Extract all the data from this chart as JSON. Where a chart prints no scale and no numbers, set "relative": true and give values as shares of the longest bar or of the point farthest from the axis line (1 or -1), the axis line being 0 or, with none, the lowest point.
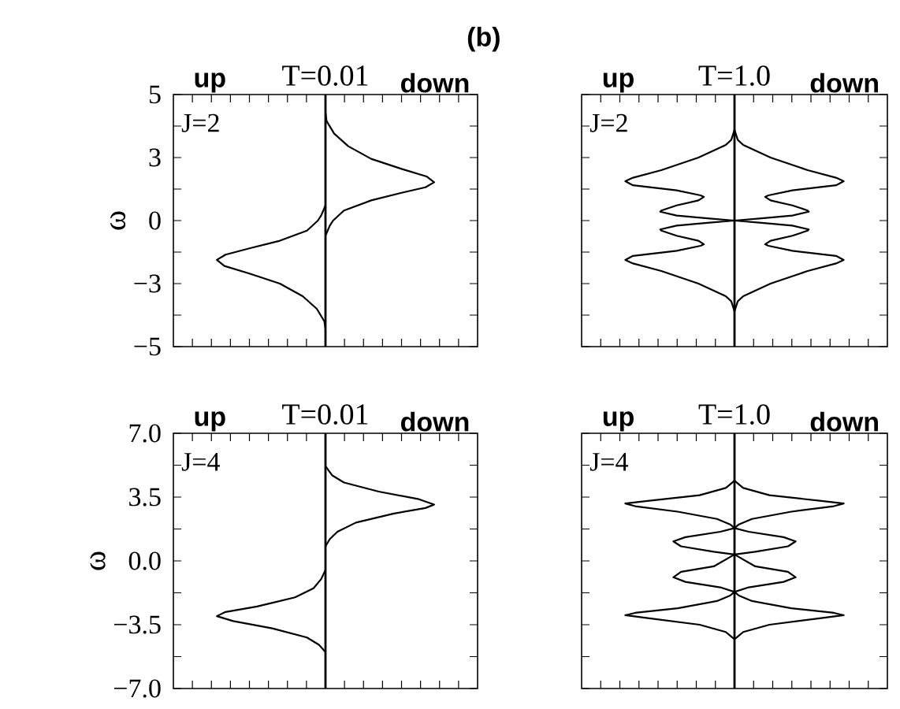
{
  "chart_data": [
    {
      "type": "line",
      "orientation": "horizontal",
      "relative": true,
      "title": "T=0.01",
      "ylabel": "ω",
      "annotations": [
        "J=2"
      ],
      "ylim": [
        -5,
        5
      ],
      "yticks": [
        {
          "value": -5,
          "label": "−5"
        },
        {
          "value": -2.5,
          "label": "−3"
        },
        {
          "value": 0,
          "label": "0"
        },
        {
          "value": 2.5,
          "label": "3"
        },
        {
          "value": 5,
          "label": "5"
        }
      ],
      "tick_labels": "y",
      "legend": "top",
      "series": [
        {
          "name": "up",
          "color": "#000000",
          "x": [
            0.6,
            0.2,
            0,
            -0.4,
            -0.8,
            -1.1,
            -1.35,
            -1.56,
            -1.8,
            -2.1,
            -2.5,
            -3,
            -3.5,
            -4,
            -4.3
          ],
          "values": [
            0,
            -0.04,
            -0.07,
            -0.17,
            -0.42,
            -0.7,
            -0.92,
            -1,
            -0.93,
            -0.7,
            -0.42,
            -0.21,
            -0.08,
            -0.01,
            0
          ]
        },
        {
          "name": "down",
          "color": "#000000",
          "x": [
            -0.6,
            -0.2,
            0,
            0.4,
            0.8,
            1.1,
            1.32,
            1.52,
            1.75,
            2.05,
            2.45,
            2.95,
            3.45,
            3.95,
            4.3
          ],
          "values": [
            0,
            0.04,
            0.07,
            0.17,
            0.42,
            0.7,
            0.92,
            1,
            0.93,
            0.7,
            0.42,
            0.21,
            0.08,
            0.01,
            0
          ]
        }
      ]
    },
    {
      "type": "line",
      "orientation": "horizontal",
      "relative": true,
      "title": "T=1.0",
      "annotations": [
        "J=2",
        "(b)"
      ],
      "ylim": [
        -5,
        5
      ],
      "tick_labels": false,
      "legend": "top",
      "series": [
        {
          "name": "up",
          "color": "#000000",
          "x": [
            3.6,
            3.2,
            3.0,
            2.5,
            2.0,
            1.7,
            1.56,
            1.4,
            1.2,
            1.0,
            0.94,
            0.8,
            0.6,
            0.4,
            0.35,
            0.2,
            0.1,
            0,
            -0.1,
            -0.2,
            -0.35,
            -0.4,
            -0.6,
            -0.8,
            -0.94,
            -1.0,
            -1.2,
            -1.4,
            -1.56,
            -1.7,
            -2.0,
            -2.5,
            -3.0,
            -3.2,
            -3.6
          ],
          "values": [
            0,
            -0.03,
            -0.08,
            -0.33,
            -0.67,
            -0.93,
            -1,
            -0.93,
            -0.53,
            -0.31,
            -0.28,
            -0.33,
            -0.53,
            -0.67,
            -0.68,
            -0.53,
            -0.27,
            0,
            -0.27,
            -0.53,
            -0.68,
            -0.67,
            -0.53,
            -0.33,
            -0.28,
            -0.31,
            -0.53,
            -0.93,
            -1,
            -0.93,
            -0.67,
            -0.33,
            -0.08,
            -0.03,
            0
          ]
        },
        {
          "name": "down",
          "color": "#000000",
          "x": [
            3.6,
            3.2,
            3.0,
            2.5,
            2.0,
            1.7,
            1.56,
            1.4,
            1.2,
            1.0,
            0.94,
            0.8,
            0.6,
            0.4,
            0.35,
            0.2,
            0.1,
            0,
            -0.1,
            -0.2,
            -0.35,
            -0.4,
            -0.6,
            -0.8,
            -0.94,
            -1.0,
            -1.2,
            -1.4,
            -1.56,
            -1.7,
            -2.0,
            -2.5,
            -3.0,
            -3.2,
            -3.6
          ],
          "values": [
            0,
            0.03,
            0.08,
            0.33,
            0.67,
            0.93,
            1,
            0.93,
            0.53,
            0.31,
            0.28,
            0.33,
            0.53,
            0.67,
            0.68,
            0.53,
            0.27,
            0,
            0.27,
            0.53,
            0.68,
            0.67,
            0.53,
            0.33,
            0.28,
            0.31,
            0.53,
            0.93,
            1,
            0.93,
            0.67,
            0.33,
            0.08,
            0.03,
            0
          ]
        }
      ]
    },
    {
      "type": "line",
      "orientation": "horizontal",
      "relative": true,
      "title": "T=0.01",
      "ylabel": "ω",
      "annotations": [
        "J=4"
      ],
      "ylim": [
        -7,
        7
      ],
      "yticks": [
        {
          "value": -7,
          "label": "−7.0"
        },
        {
          "value": -3.5,
          "label": "−3.5"
        },
        {
          "value": 0,
          "label": "0.0"
        },
        {
          "value": 3.5,
          "label": "3.5"
        },
        {
          "value": 7,
          "label": "7.0"
        }
      ],
      "tick_labels": "y",
      "legend": "top",
      "series": [
        {
          "name": "up",
          "color": "#000000",
          "x": [
            -0.5,
            -1,
            -1.5,
            -2,
            -2.5,
            -2.8,
            -3.03,
            -3.3,
            -3.7,
            -4.2,
            -4.6,
            -5
          ],
          "values": [
            0,
            -0.04,
            -0.11,
            -0.28,
            -0.63,
            -0.92,
            -1,
            -0.85,
            -0.49,
            -0.17,
            -0.06,
            0
          ]
        },
        {
          "name": "down",
          "color": "#000000",
          "x": [
            0.8,
            1.2,
            1.6,
            2.1,
            2.6,
            2.9,
            3.09,
            3.4,
            3.8,
            4.3,
            4.7,
            5.2
          ],
          "values": [
            0,
            0.04,
            0.11,
            0.28,
            0.63,
            0.92,
            1,
            0.85,
            0.49,
            0.17,
            0.06,
            0
          ]
        }
      ]
    },
    {
      "type": "line",
      "orientation": "horizontal",
      "relative": true,
      "title": "T=1.0",
      "annotations": [
        "J=4"
      ],
      "ylim": [
        -7,
        7
      ],
      "tick_labels": false,
      "legend": "top",
      "series": [
        {
          "name": "up",
          "color": "#000000",
          "x": [
            4.4,
            4.2,
            4.0,
            3.6,
            3.3,
            3.15,
            3.0,
            2.7,
            2.3,
            2.0,
            1.8,
            1.6,
            1.3,
            1.07,
            0.8,
            0.5,
            0.35,
            -0.3,
            -0.6,
            -0.9,
            -1.15,
            -1.45,
            -1.7,
            -1.9,
            -2.2,
            -2.6,
            -2.85,
            -2.98,
            -3.15,
            -3.5,
            -3.9,
            -4.1,
            -4.3
          ],
          "values": [
            0,
            -0.04,
            -0.08,
            -0.32,
            -0.78,
            -1,
            -0.91,
            -0.52,
            -0.16,
            -0.04,
            0,
            -0.13,
            -0.45,
            -0.56,
            -0.49,
            -0.19,
            0,
            -0.19,
            -0.49,
            -0.56,
            -0.45,
            -0.13,
            0,
            -0.04,
            -0.16,
            -0.52,
            -0.91,
            -1,
            -0.78,
            -0.32,
            -0.08,
            -0.04,
            0
          ]
        },
        {
          "name": "down",
          "color": "#000000",
          "x": [
            4.4,
            4.2,
            4.0,
            3.6,
            3.3,
            3.15,
            3.0,
            2.7,
            2.3,
            2.0,
            1.8,
            1.6,
            1.3,
            1.07,
            0.8,
            0.5,
            0.35,
            -0.3,
            -0.6,
            -0.9,
            -1.15,
            -1.45,
            -1.7,
            -1.9,
            -2.2,
            -2.6,
            -2.85,
            -2.98,
            -3.15,
            -3.5,
            -3.9,
            -4.1,
            -4.3
          ],
          "values": [
            0,
            0.04,
            0.08,
            0.32,
            0.78,
            1,
            0.91,
            0.52,
            0.16,
            0.04,
            0,
            0.13,
            0.45,
            0.56,
            0.49,
            0.19,
            0,
            0.19,
            0.49,
            0.56,
            0.45,
            0.13,
            0,
            0.04,
            0.16,
            0.52,
            0.91,
            1,
            0.78,
            0.32,
            0.08,
            0.04,
            0
          ]
        }
      ]
    }
  ]
}
